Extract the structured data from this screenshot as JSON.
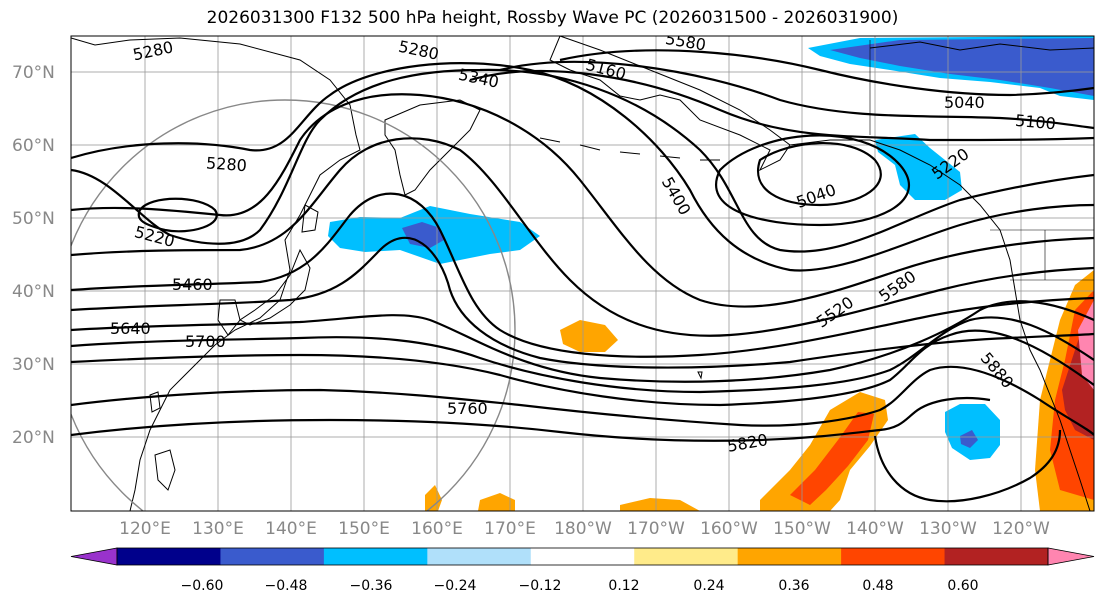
{
  "title": "2026031300 F132 500 hPa height, Rossby Wave PC (2026031500 - 2026031900)",
  "lat_labels": [
    "70°N",
    "60°N",
    "50°N",
    "40°N",
    "30°N",
    "20°N"
  ],
  "lon_labels": [
    "120°E",
    "130°E",
    "140°E",
    "150°E",
    "160°E",
    "170°E",
    "180°W",
    "170°W",
    "160°W",
    "150°W",
    "140°W",
    "130°W",
    "120°W"
  ],
  "contour_labels": [
    "5280",
    "5280",
    "5340",
    "5160",
    "5040",
    "5100",
    "5280",
    "5220",
    "5460",
    "5640",
    "5700",
    "5400",
    "5040",
    "5520",
    "5580",
    "5760",
    "5820",
    "5880",
    "5220",
    "5580"
  ],
  "colorbar": {
    "ticks": [
      "−0.60",
      "−0.48",
      "−0.36",
      "−0.24",
      "−0.12",
      "0.12",
      "0.24",
      "0.36",
      "0.48",
      "0.60"
    ],
    "colors": [
      "#9932cc",
      "#00008b",
      "#3a5bcd",
      "#00bfff",
      "#b0e0fa",
      "#ffffff",
      "#ffeb8a",
      "#ffa500",
      "#ff4500",
      "#b22222",
      "#ff85b0"
    ]
  },
  "anomaly_colors": {
    "neg_light": "#00bfff",
    "neg_dark": "#3a5bcd",
    "pos_light": "#ffa500",
    "pos_mid": "#ff4500",
    "pos_dark": "#b22222",
    "pos_pink": "#ff85b0"
  }
}
